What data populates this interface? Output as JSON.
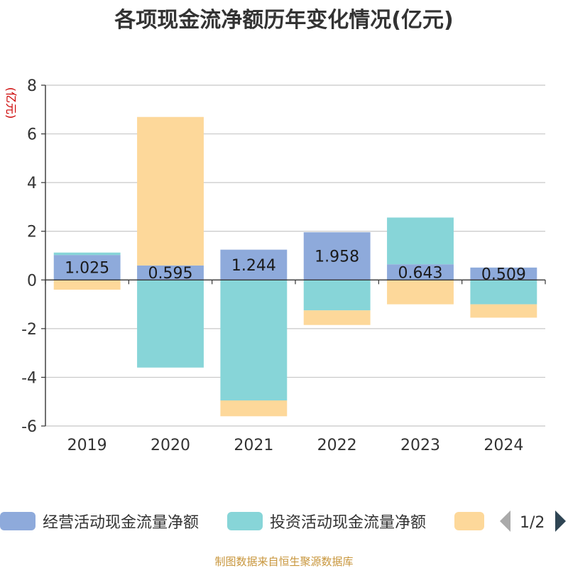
{
  "chart_data": {
    "type": "bar",
    "stacked": true,
    "title": "各项现金流净额历年变化情况(亿元)",
    "unit_label": "(亿元)",
    "categories": [
      "2019",
      "2020",
      "2021",
      "2022",
      "2023",
      "2024"
    ],
    "ylim": [
      -6,
      8
    ],
    "yticks": [
      -6,
      -4,
      -2,
      0,
      2,
      4,
      6,
      8
    ],
    "grid": true,
    "series": [
      {
        "name": "经营活动现金流量净额",
        "color": "#8eaadb",
        "values": [
          1.025,
          0.595,
          1.244,
          1.958,
          0.643,
          0.509
        ],
        "labels": [
          "1.025",
          "0.595",
          "1.244",
          "1.958",
          "0.643",
          "0.509"
        ]
      },
      {
        "name": "投资活动现金流量净额",
        "color": "#87d5d8",
        "values": [
          0.1,
          -3.6,
          -4.95,
          -1.25,
          1.92,
          -1.0
        ]
      },
      {
        "name": "",
        "color": "#fdd89a",
        "values": [
          -0.4,
          6.1,
          -0.65,
          -0.6,
          -1.0,
          -0.55
        ]
      }
    ]
  },
  "legend": {
    "items": [
      {
        "label": "经营活动现金流量净额",
        "color": "#8eaadb"
      },
      {
        "label": "投资活动现金流量净额",
        "color": "#87d5d8"
      },
      {
        "label": "",
        "color": "#fdd89a"
      }
    ],
    "page": "1/2",
    "prev_icon": "triangle-left-icon",
    "next_icon": "triangle-right-icon"
  },
  "source": "制图数据来自恒生聚源数据库"
}
